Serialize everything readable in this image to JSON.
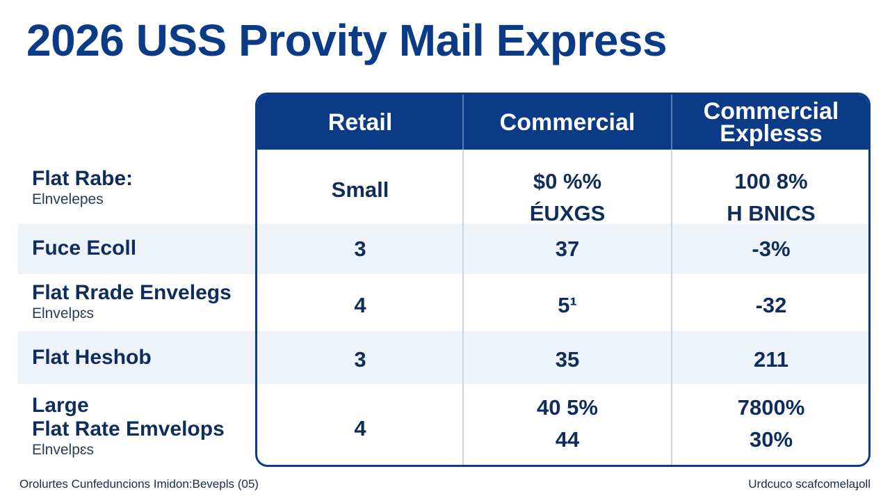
{
  "title": "2026 USS Provity Mail Express",
  "header": {
    "columns": [
      "Retail",
      "Commercial",
      "Commercial Explesss"
    ],
    "column_lines": [
      [
        "Retail"
      ],
      [
        "Commercial"
      ],
      [
        "Commercial",
        "Explesss"
      ]
    ]
  },
  "rows": [
    {
      "label": "Flat Rabe:",
      "sublabel": "Elnvelepes",
      "retail": [
        "Small"
      ],
      "commercial": [
        "$0 %%",
        "ÉUXGS"
      ],
      "commercial_express": [
        "100 8%",
        "H BNICS"
      ]
    },
    {
      "label": "Fuce Ecoll",
      "sublabel": "",
      "retail": [
        "3"
      ],
      "commercial": [
        "37"
      ],
      "commercial_express": [
        "-3%"
      ]
    },
    {
      "label": "Flat Rrade Envelegs",
      "sublabel": "Elnvelpɛs",
      "retail": [
        "4"
      ],
      "commercial": [
        "5¹"
      ],
      "commercial_express": [
        "-32"
      ]
    },
    {
      "label": "Flat Heshob",
      "sublabel": "",
      "retail": [
        "3"
      ],
      "commercial": [
        "35"
      ],
      "commercial_express": [
        "211"
      ]
    },
    {
      "label": "Large",
      "label2": "Flat Rate Emvelops",
      "sublabel": "Elnvelpɛs",
      "retail": [
        "4"
      ],
      "commercial": [
        "40 5%",
        "44"
      ],
      "commercial_express": [
        "7800%",
        "30%"
      ]
    }
  ],
  "footer": {
    "left": "Orolurtes Cunfeduncions Imidon:Bevepls (05)",
    "right": "Urdcuco scafcomelaɟoll"
  },
  "colors": {
    "primary": "#0b3a86",
    "band": "#eef3f9",
    "text": "#0f2d5c"
  }
}
